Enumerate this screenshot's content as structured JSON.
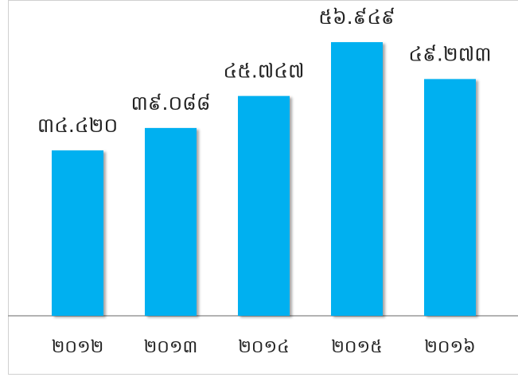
{
  "chart_data": {
    "type": "bar",
    "categories": [
      "២០១២",
      "២០១៣",
      "២០១៤",
      "២០១៥",
      "២០១៦"
    ],
    "values": [
      34.42,
      39.088,
      45.747,
      56.949,
      49.273
    ],
    "value_labels": [
      "៣៤.៤២០",
      "៣៩.០៨៨",
      "៤៥.៧៤៧",
      "៥៦.៩៤៩",
      "៤៩.២៧៣"
    ],
    "color": "#00b0f0"
  }
}
